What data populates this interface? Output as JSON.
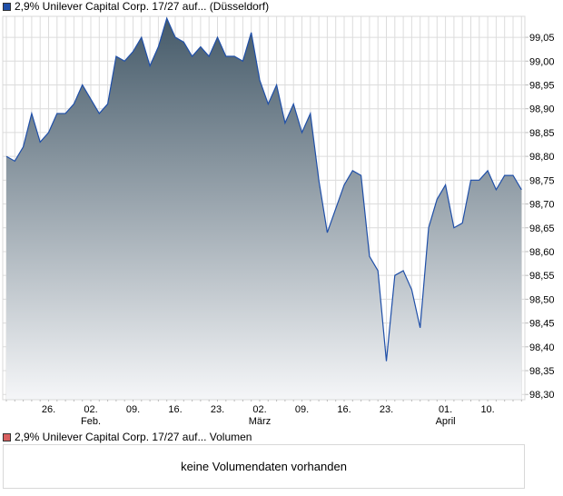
{
  "price_legend": {
    "label": "2,9% Unilever Capital Corp. 17/27 auf... (Düsseldorf)",
    "color": "#1f4fa8"
  },
  "volume_legend": {
    "label": "2,9% Unilever Capital Corp. 17/27 auf... Volumen",
    "color": "#d96060"
  },
  "volume_message": "keine Volumendaten vorhanden",
  "chart_data": {
    "type": "area",
    "title": "2,9% Unilever Capital Corp. 17/27 auf... (Düsseldorf)",
    "xlabel": "",
    "ylabel": "",
    "ylim": [
      98.289,
      99.094
    ],
    "grid": true,
    "y_ticks": [
      "98,30",
      "98,35",
      "98,40",
      "98,45",
      "98,50",
      "98,55",
      "98,60",
      "98,65",
      "98,70",
      "98,75",
      "98,80",
      "98,85",
      "98,90",
      "98,95",
      "99,00",
      "99,05"
    ],
    "y_tick_values": [
      98.3,
      98.35,
      98.4,
      98.45,
      98.5,
      98.55,
      98.6,
      98.65,
      98.7,
      98.75,
      98.8,
      98.85,
      98.9,
      98.95,
      99.0,
      99.05
    ],
    "x_ticks": [
      {
        "label": "26.",
        "sub": "",
        "index": 5
      },
      {
        "label": "02.",
        "sub": "Feb.",
        "index": 10
      },
      {
        "label": "09.",
        "sub": "",
        "index": 15
      },
      {
        "label": "16.",
        "sub": "",
        "index": 20
      },
      {
        "label": "23.",
        "sub": "",
        "index": 25
      },
      {
        "label": "02.",
        "sub": "März",
        "index": 30
      },
      {
        "label": "09.",
        "sub": "",
        "index": 35
      },
      {
        "label": "16.",
        "sub": "",
        "index": 40
      },
      {
        "label": "23.",
        "sub": "",
        "index": 45
      },
      {
        "label": "01.",
        "sub": "April",
        "index": 52
      },
      {
        "label": "10.",
        "sub": "",
        "index": 57
      }
    ],
    "values": [
      98.8,
      98.79,
      98.82,
      98.89,
      98.83,
      98.85,
      98.89,
      98.89,
      98.91,
      98.95,
      98.92,
      98.89,
      98.91,
      99.01,
      99.0,
      99.02,
      99.05,
      98.99,
      99.03,
      99.09,
      99.05,
      99.04,
      99.01,
      99.03,
      99.01,
      99.05,
      99.01,
      99.01,
      99.0,
      99.06,
      98.96,
      98.91,
      98.95,
      98.87,
      98.91,
      98.85,
      98.89,
      98.75,
      98.64,
      98.69,
      98.74,
      98.77,
      98.76,
      98.59,
      98.56,
      98.37,
      98.55,
      98.56,
      98.52,
      98.44,
      98.65,
      98.71,
      98.74,
      98.65,
      98.66,
      98.75,
      98.75,
      98.77,
      98.73,
      98.76,
      98.76,
      98.73
    ],
    "line_color": "#1f4fa8",
    "fill_top": "#455a69",
    "fill_bottom": "#f5f6f8"
  }
}
